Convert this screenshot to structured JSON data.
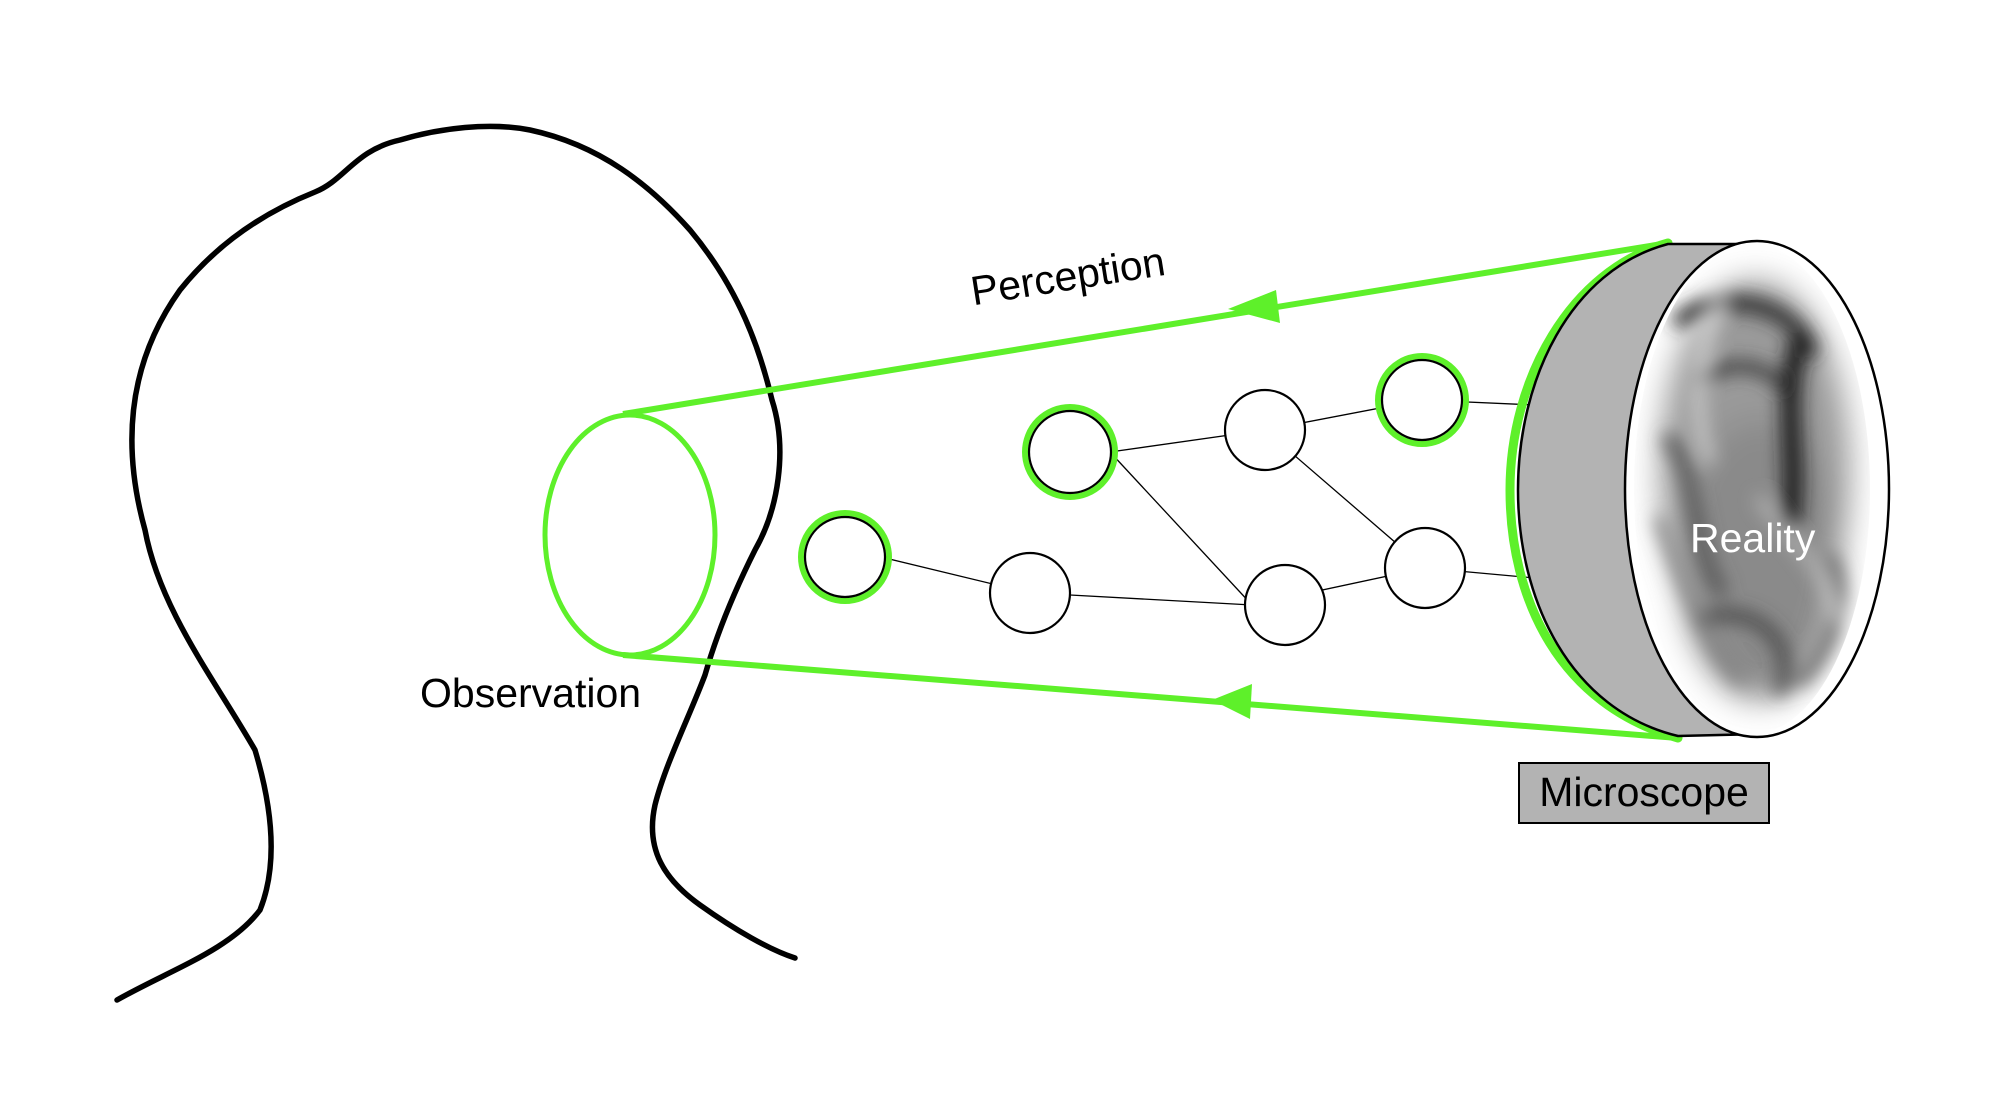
{
  "colors": {
    "accent": "#5ef02a",
    "outline": "#000000",
    "microscope_gray": "#b3b3b3",
    "label_box_gray": "#b3b3b3",
    "reality_text": "#ffffff"
  },
  "labels": {
    "perception": "Perception",
    "observation": "Observation",
    "reality": "Reality",
    "microscope": "Microscope"
  },
  "shapes": {
    "head": "human-head-profile-outline",
    "observation_lens": "ellipse-outline",
    "microscope": "disc-with-blurred-texture"
  },
  "network": {
    "nodes": [
      {
        "id": "n1",
        "highlighted": true
      },
      {
        "id": "n2",
        "highlighted": false
      },
      {
        "id": "n3",
        "highlighted": true
      },
      {
        "id": "n4",
        "highlighted": false
      },
      {
        "id": "n5",
        "highlighted": false
      },
      {
        "id": "n6",
        "highlighted": true
      },
      {
        "id": "n7",
        "highlighted": false
      }
    ],
    "edges": [
      [
        "n1",
        "n2"
      ],
      [
        "n2",
        "n5"
      ],
      [
        "n3",
        "n4"
      ],
      [
        "n3",
        "n5"
      ],
      [
        "n4",
        "n6"
      ],
      [
        "n4",
        "n7"
      ],
      [
        "n5",
        "n7"
      ],
      [
        "n6",
        "microscope"
      ],
      [
        "n7",
        "microscope"
      ]
    ]
  }
}
